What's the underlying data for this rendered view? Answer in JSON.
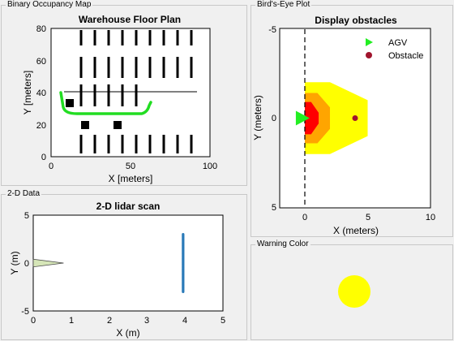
{
  "panels": {
    "occupancy": {
      "title": "Binary Occupancy Map",
      "chart": {
        "title": "Warehouse Floor Plan",
        "xlabel": "X [meters]",
        "ylabel": "Y [meters]",
        "xticks": [
          "0",
          "50",
          "100"
        ],
        "yticks": [
          "80",
          "60",
          "40",
          "20",
          "0"
        ]
      }
    },
    "lidar": {
      "title": "2-D Data",
      "chart": {
        "title": "2-D lidar scan",
        "xlabel": "X (m)",
        "ylabel": "Y (m)",
        "xticks": [
          "0",
          "1",
          "2",
          "3",
          "4",
          "5"
        ],
        "yticks": [
          "5",
          "0",
          "-5"
        ]
      }
    },
    "birdseye": {
      "title": "Bird's-Eye Plot",
      "chart": {
        "title": "Display obstacles",
        "xlabel": "X (meters)",
        "ylabel": "Y (meters)",
        "xticks": [
          "0",
          "5",
          "10"
        ],
        "yticks": [
          "-5",
          "0",
          "5"
        ],
        "legend": {
          "agv": "AGV",
          "obstacle": "Obstacle"
        }
      }
    },
    "warning": {
      "title": "Warning Color",
      "color": "#ffff00"
    }
  },
  "chart_data": [
    {
      "type": "scatter",
      "title": "Warehouse Floor Plan",
      "xlabel": "X [meters]",
      "ylabel": "Y [meters]",
      "xlim": [
        0,
        100
      ],
      "ylim": [
        0,
        80
      ],
      "grid": false,
      "description_series": [
        {
          "name": "shelf-rows-top",
          "x": [
            20,
            30,
            40,
            50,
            60,
            70,
            80,
            90,
            100
          ],
          "y": [
            [
              62,
              80
            ],
            [
              62,
              80
            ],
            [
              62,
              80
            ],
            [
              62,
              80
            ],
            [
              62,
              80
            ],
            [
              62,
              80
            ],
            [
              62,
              80
            ],
            [
              62,
              80
            ],
            [
              62,
              80
            ]
          ]
        },
        {
          "name": "shelf-rows-mid",
          "x": [
            20,
            30,
            40,
            50,
            60
          ],
          "y": [
            [
              27,
              52
            ],
            [
              27,
              52
            ],
            [
              27,
              52
            ],
            [
              27,
              52
            ],
            [
              27,
              52
            ]
          ]
        },
        {
          "name": "shelf-rows-bottom",
          "x": [
            20,
            30,
            40,
            50,
            60
          ],
          "y": [
            [
              0,
              10
            ],
            [
              0,
              10
            ],
            [
              0,
              10
            ],
            [
              0,
              10
            ],
            [
              0,
              10
            ]
          ]
        },
        {
          "name": "obstacle-blocks",
          "x": [
            12,
            22,
            42
          ],
          "y": [
            33,
            20,
            20
          ]
        },
        {
          "name": "path",
          "x": [
            6,
            10,
            30,
            55,
            62,
            64
          ],
          "y": [
            40,
            30,
            28,
            28,
            30,
            34
          ]
        }
      ]
    },
    {
      "type": "scatter",
      "title": "2-D lidar scan",
      "xlabel": "X (m)",
      "ylabel": "Y (m)",
      "xlim": [
        0,
        5
      ],
      "ylim": [
        -5,
        5
      ],
      "grid": false,
      "points_x": 3.95,
      "points_y_range": [
        -3,
        3
      ],
      "sensor_wedge": {
        "apex": [
          0.8,
          0
        ],
        "base_x": 0,
        "base_y": [
          -0.4,
          0.4
        ]
      }
    },
    {
      "type": "scatter",
      "title": "Display obstacles",
      "xlabel": "X (meters)",
      "ylabel": "Y (meters)",
      "xlim": [
        -2,
        10
      ],
      "ylim": [
        5,
        -5
      ],
      "grid": false,
      "legend_position": "top-right",
      "agv": {
        "x": -0.2,
        "y": 0
      },
      "obstacle": {
        "x": 4,
        "y": 0
      },
      "zones": [
        {
          "color": "#ffff00",
          "x": [
            0,
            0,
            2,
            5,
            5,
            2
          ],
          "y": [
            -2,
            2,
            2,
            1,
            -1,
            -2
          ]
        },
        {
          "color": "#ffa500",
          "x": [
            0,
            0,
            1,
            2,
            2,
            1
          ],
          "y": [
            -1.4,
            1.4,
            1.4,
            0.6,
            -0.6,
            -1.4
          ]
        },
        {
          "color": "#ff0000",
          "x": [
            0,
            0,
            0.5,
            1.1,
            1.1,
            0.5
          ],
          "y": [
            -0.9,
            0.9,
            0.9,
            0.3,
            -0.3,
            -0.9
          ]
        }
      ]
    }
  ]
}
